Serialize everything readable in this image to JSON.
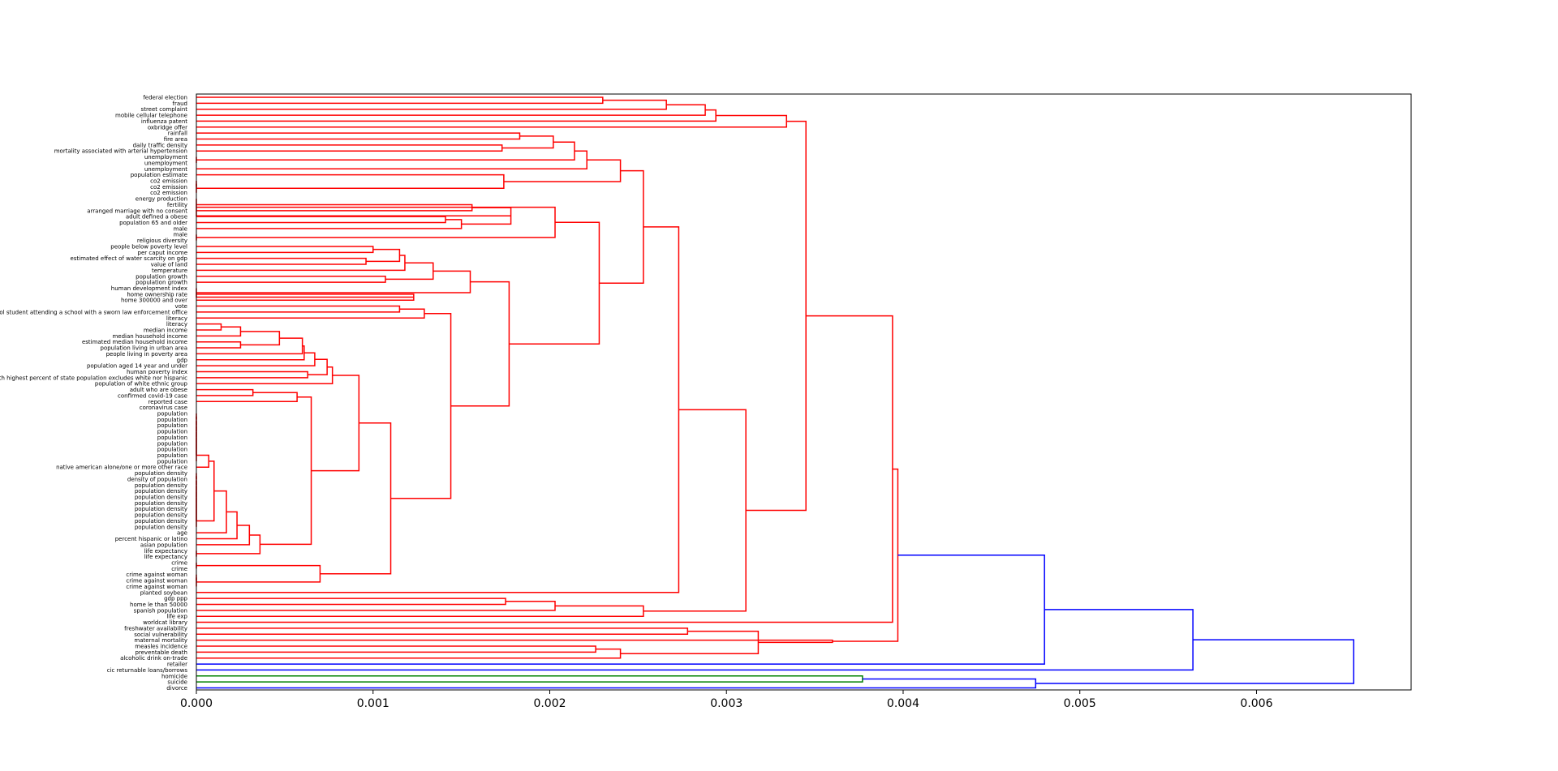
{
  "chart_data": {
    "type": "dendrogram",
    "orientation": "horizontal",
    "xlim": [
      0,
      0.006875
    ],
    "xticks": [
      0.0,
      0.001,
      0.002,
      0.003,
      0.004,
      0.005,
      0.006
    ],
    "xtick_labels": [
      "0.000",
      "0.001",
      "0.002",
      "0.003",
      "0.004",
      "0.005",
      "0.006"
    ],
    "colors": {
      "red": "#ff0000",
      "blue": "#0000ff",
      "green": "#008000"
    },
    "leaves": [
      "federal election",
      "fraud",
      "street complaint",
      "mobile cellular telephone",
      "influenza patent",
      "oxbridge offer",
      "rainfall",
      "fire area",
      "daily traffic density",
      "mortality associated with arterial hypertension",
      "unemployment",
      "unemployment",
      "unemployment",
      "population estimate",
      "co2 emission",
      "co2 emission",
      "co2 emission",
      "energy production",
      "fertility",
      "arranged marriage with no consent",
      "adult defined a obese",
      "population 65 and older",
      "male",
      "male",
      "religious diversity",
      "people below poverty level",
      "per caput income",
      "estimated effect of water scarcity on gdp",
      "value of land",
      "temperature",
      "population growth",
      "population growth",
      "human development index",
      "home ownership rate",
      "home 300000 and over",
      "vote",
      "school student attending a school with a sworn law enforcement office",
      "literacy",
      "literacy",
      "median income",
      "median household income",
      "estimated median household income",
      "population living in urban area",
      "people living in poverty area",
      "gdp",
      "population aged 14 year and under",
      "human poverty index",
      "rank with highest percent of state population excludes white nor hispanic",
      "population of white ethnic group",
      "adult who are obese",
      "confirmed covid-19 case",
      "reported case",
      "coronavirus case",
      "population",
      "population",
      "population",
      "population",
      "population",
      "population",
      "population",
      "population",
      "population",
      "native american alone/one or more other race",
      "population density",
      "density of population",
      "population density",
      "population density",
      "population density",
      "population density",
      "population density",
      "population density",
      "population density",
      "population density",
      "age",
      "percent hispanic or latino",
      "asian population",
      "life expectancy",
      "life expectancy",
      "crime",
      "crime",
      "crime against woman",
      "crime against woman",
      "crime against woman",
      "planted soybean",
      "gdp ppp",
      "home le than 50000",
      "spanish population",
      "life exp",
      "worldcat library",
      "freshwater availability",
      "social vulnerability",
      "maternal mortality",
      "measles incidence",
      "preventable death",
      "alcoholic drink on-trade",
      "retailer",
      "cic returnable loans/borrows",
      "homicide",
      "suicide",
      "divorce"
    ],
    "merges": [
      {
        "a": "L0",
        "b": "L1",
        "height": 0.0023,
        "color": "red"
      },
      {
        "a": "C0",
        "b": "L2",
        "height": 0.00266,
        "color": "red"
      },
      {
        "a": "C1",
        "b": "L3",
        "height": 0.00288,
        "color": "red"
      },
      {
        "a": "C2",
        "b": "L4",
        "height": 0.00294,
        "color": "red"
      },
      {
        "a": "C3",
        "b": "L5",
        "height": 0.00334,
        "color": "red"
      },
      {
        "a": "L6",
        "b": "L7",
        "height": 0.00183,
        "color": "red"
      },
      {
        "a": "L8",
        "b": "L9",
        "height": 0.00173,
        "color": "red"
      },
      {
        "a": "C5",
        "b": "C6",
        "height": 0.00202,
        "color": "red"
      },
      {
        "a": "L10",
        "b": "L11",
        "height": 0.0,
        "color": "red"
      },
      {
        "a": "C7",
        "b": "C8",
        "height": 0.00214,
        "color": "red"
      },
      {
        "a": "C9",
        "b": "L12",
        "height": 0.00221,
        "color": "red"
      },
      {
        "a": "L14",
        "b": "L15",
        "height": 0.0,
        "color": "red"
      },
      {
        "a": "C11",
        "b": "L16",
        "height": 0.0,
        "color": "red"
      },
      {
        "a": "L13",
        "b": "C12",
        "height": 0.00174,
        "color": "red"
      },
      {
        "a": "C10",
        "b": "C13",
        "height": 0.0024,
        "color": "red"
      },
      {
        "a": "L18",
        "b": "L19",
        "height": 0.00156,
        "color": "red"
      },
      {
        "a": "L20",
        "b": "L21",
        "height": 0.00141,
        "color": "red"
      },
      {
        "a": "C16",
        "b": "L22",
        "height": 0.0015,
        "color": "red"
      },
      {
        "a": "C15",
        "b": "C17",
        "height": 0.00178,
        "color": "red"
      },
      {
        "a": "L17",
        "b": "C18",
        "height": 0.0,
        "color": "red"
      },
      {
        "a": "L23",
        "b": "L24",
        "height": 0.0,
        "color": "red"
      },
      {
        "a": "C19",
        "b": "C20",
        "height": 0.00203,
        "color": "red"
      },
      {
        "a": "L25",
        "b": "L26",
        "height": 0.001,
        "color": "red"
      },
      {
        "a": "L27",
        "b": "L28",
        "height": 0.00096,
        "color": "red"
      },
      {
        "a": "C22",
        "b": "C23",
        "height": 0.00115,
        "color": "red"
      },
      {
        "a": "C24",
        "b": "L29",
        "height": 0.00118,
        "color": "red"
      },
      {
        "a": "L30",
        "b": "L31",
        "height": 0.00107,
        "color": "red"
      },
      {
        "a": "C25",
        "b": "C26",
        "height": 0.00134,
        "color": "red"
      },
      {
        "a": "L33",
        "b": "L34",
        "height": 0.00123,
        "color": "red"
      },
      {
        "a": "L32",
        "b": "C28",
        "height": 0.0,
        "color": "red"
      },
      {
        "a": "C27",
        "b": "C29",
        "height": 0.00155,
        "color": "red"
      },
      {
        "a": "L35",
        "b": "L36",
        "height": 0.00115,
        "color": "red"
      },
      {
        "a": "C31",
        "b": "L37",
        "height": 0.00129,
        "color": "red"
      },
      {
        "a": "L38",
        "b": "L39",
        "height": 0.00014,
        "color": "red"
      },
      {
        "a": "C33",
        "b": "L40",
        "height": 0.00025,
        "color": "red"
      },
      {
        "a": "L41",
        "b": "L42",
        "height": 0.00025,
        "color": "red"
      },
      {
        "a": "C34",
        "b": "C35",
        "height": 0.00047,
        "color": "red"
      },
      {
        "a": "C36",
        "b": "L43",
        "height": 0.0006,
        "color": "red"
      },
      {
        "a": "C37",
        "b": "L44",
        "height": 0.00061,
        "color": "red"
      },
      {
        "a": "C38",
        "b": "L45",
        "height": 0.00067,
        "color": "red"
      },
      {
        "a": "L46",
        "b": "L47",
        "height": 0.00063,
        "color": "red"
      },
      {
        "a": "C39",
        "b": "C40",
        "height": 0.00074,
        "color": "red"
      },
      {
        "a": "C41",
        "b": "L48",
        "height": 0.00077,
        "color": "red"
      },
      {
        "a": "L49",
        "b": "L50",
        "height": 0.00032,
        "color": "red"
      },
      {
        "a": "C43",
        "b": "L51",
        "height": 0.00057,
        "color": "red"
      },
      {
        "a": "L53",
        "b": "L54",
        "height": 0.0,
        "color": "red"
      },
      {
        "a": "C45",
        "b": "L55",
        "height": 0.0,
        "color": "red"
      },
      {
        "a": "C46",
        "b": "L56",
        "height": 0.0,
        "color": "red"
      },
      {
        "a": "C47",
        "b": "L57",
        "height": 0.0,
        "color": "red"
      },
      {
        "a": "C48",
        "b": "L58",
        "height": 0.0,
        "color": "red"
      },
      {
        "a": "C49",
        "b": "L59",
        "height": 0.0,
        "color": "red"
      },
      {
        "a": "C50",
        "b": "L60",
        "height": 0.0,
        "color": "red"
      },
      {
        "a": "C51",
        "b": "L61",
        "height": 0.0,
        "color": "red"
      },
      {
        "a": "C52",
        "b": "L62",
        "height": 7e-05,
        "color": "red"
      },
      {
        "a": "L63",
        "b": "L64",
        "height": 0.0,
        "color": "red"
      },
      {
        "a": "C54",
        "b": "L65",
        "height": 0.0,
        "color": "red"
      },
      {
        "a": "C55",
        "b": "L66",
        "height": 0.0,
        "color": "red"
      },
      {
        "a": "C56",
        "b": "L67",
        "height": 0.0,
        "color": "red"
      },
      {
        "a": "C57",
        "b": "L68",
        "height": 0.0,
        "color": "red"
      },
      {
        "a": "C58",
        "b": "L69",
        "height": 0.0,
        "color": "red"
      },
      {
        "a": "C59",
        "b": "L70",
        "height": 0.0,
        "color": "red"
      },
      {
        "a": "C60",
        "b": "L71",
        "height": 0.0,
        "color": "red"
      },
      {
        "a": "C61",
        "b": "L72",
        "height": 0.0,
        "color": "red"
      },
      {
        "a": "C53",
        "b": "C62",
        "height": 0.0001,
        "color": "red"
      },
      {
        "a": "C63",
        "b": "L73",
        "height": 0.00017,
        "color": "red"
      },
      {
        "a": "C64",
        "b": "L74",
        "height": 0.00023,
        "color": "red"
      },
      {
        "a": "C65",
        "b": "L75",
        "height": 0.0003,
        "color": "red"
      },
      {
        "a": "L76",
        "b": "L77",
        "height": 0.0,
        "color": "red"
      },
      {
        "a": "C66",
        "b": "C67",
        "height": 0.00036,
        "color": "red"
      },
      {
        "a": "C44",
        "b": "C68",
        "height": 0.00065,
        "color": "red"
      },
      {
        "a": "C42",
        "b": "C69",
        "height": 0.00092,
        "color": "red"
      },
      {
        "a": "L78",
        "b": "L79",
        "height": 0.0,
        "color": "red"
      },
      {
        "a": "L80",
        "b": "L81",
        "height": 0.0,
        "color": "red"
      },
      {
        "a": "C72",
        "b": "L82",
        "height": 0.0,
        "color": "red"
      },
      {
        "a": "C71",
        "b": "C73",
        "height": 0.0007,
        "color": "red"
      },
      {
        "a": "C70",
        "b": "C74",
        "height": 0.0011,
        "color": "red"
      },
      {
        "a": "C32",
        "b": "C75",
        "height": 0.00144,
        "color": "red"
      },
      {
        "a": "C30",
        "b": "C76",
        "height": 0.00177,
        "color": "red"
      },
      {
        "a": "C21",
        "b": "C77",
        "height": 0.00228,
        "color": "red"
      },
      {
        "a": "C14",
        "b": "C78",
        "height": 0.00253,
        "color": "red"
      },
      {
        "a": "C79",
        "b": "L83",
        "height": 0.00273,
        "color": "red"
      },
      {
        "a": "L84",
        "b": "L85",
        "height": 0.00175,
        "color": "red"
      },
      {
        "a": "C81",
        "b": "L86",
        "height": 0.00203,
        "color": "red"
      },
      {
        "a": "C82",
        "b": "L87",
        "height": 0.00253,
        "color": "red"
      },
      {
        "a": "C80",
        "b": "C83",
        "height": 0.00311,
        "color": "red"
      },
      {
        "a": "C4",
        "b": "C84",
        "height": 0.00345,
        "color": "red"
      },
      {
        "a": "C85",
        "b": "L88",
        "height": 0.00394,
        "color": "red"
      },
      {
        "a": "L89",
        "b": "L90",
        "height": 0.00278,
        "color": "red"
      },
      {
        "a": "L92",
        "b": "L93",
        "height": 0.00226,
        "color": "red"
      },
      {
        "a": "C88",
        "b": "L94",
        "height": 0.0024,
        "color": "red"
      },
      {
        "a": "C87",
        "b": "C89",
        "height": 0.00318,
        "color": "red"
      },
      {
        "a": "C90",
        "b": "L91",
        "height": 0.0036,
        "color": "red"
      },
      {
        "a": "C86",
        "b": "C91",
        "height": 0.00397,
        "color": "red"
      },
      {
        "a": "C92",
        "b": "L95",
        "height": 0.0048,
        "color": "blue"
      },
      {
        "a": "C93",
        "b": "L96",
        "height": 0.00564,
        "color": "blue"
      },
      {
        "a": "L97",
        "b": "L98",
        "height": 0.00377,
        "color": "green"
      },
      {
        "a": "C95",
        "b": "L99",
        "height": 0.00475,
        "color": "blue"
      },
      {
        "a": "C94",
        "b": "C96",
        "height": 0.00655,
        "color": "blue"
      }
    ]
  }
}
